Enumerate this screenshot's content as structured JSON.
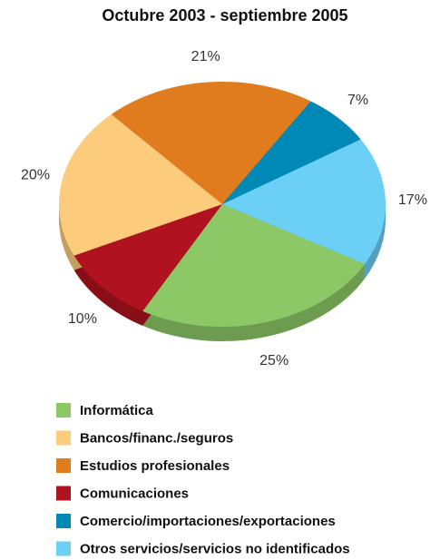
{
  "chart_data": {
    "type": "pie",
    "title": "Octubre 2003 - septiembre 2005",
    "categories": [
      "Informática",
      "Bancos/financ./seguros",
      "Estudios profesionales",
      "Comunicaciones",
      "Comercio/importaciones/exportaciones",
      "Otros servicios/servicios no identificados"
    ],
    "values": [
      25,
      20,
      21,
      10,
      7,
      17
    ],
    "value_labels": [
      "25%",
      "20%",
      "21%",
      "10%",
      "7%",
      "17%"
    ],
    "colors": [
      "#8cc866",
      "#fdcb7c",
      "#e07b1e",
      "#b0121f",
      "#0089b6",
      "#6ccff5"
    ],
    "legend": "bottom"
  }
}
